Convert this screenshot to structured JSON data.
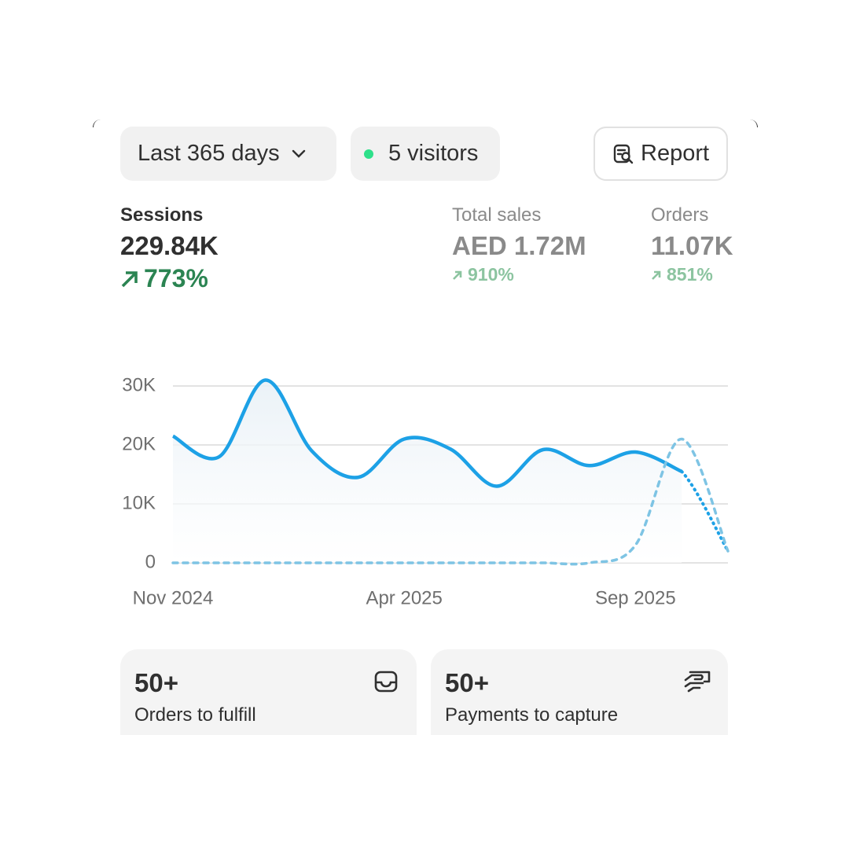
{
  "toolbar": {
    "range": "Last 365 days",
    "visitors": "5 visitors",
    "report": "Report"
  },
  "metrics": [
    {
      "label": "Sessions",
      "value": "229.84K",
      "change": "773%"
    },
    {
      "label": "Total sales",
      "value": "AED 1.72M",
      "change": "910%"
    },
    {
      "label": "Orders",
      "value": "11.07K",
      "change": "851%"
    }
  ],
  "chart_data": {
    "type": "line",
    "categories": [
      "Nov 2024",
      null,
      null,
      null,
      null,
      "Apr 2025",
      null,
      null,
      null,
      null,
      "Sep 2025",
      null,
      null
    ],
    "series": [
      {
        "color": "#1da1e6",
        "style": "solid",
        "last_segment_dotted": true,
        "values": [
          21500,
          18000,
          31000,
          19000,
          14500,
          21000,
          19300,
          13000,
          19200,
          16500,
          18800,
          15500,
          2000
        ]
      },
      {
        "color": "#7ec4e4",
        "style": "dashed",
        "values": [
          0,
          0,
          0,
          0,
          0,
          0,
          0,
          0,
          0,
          0,
          3000,
          21000,
          2000
        ]
      }
    ],
    "ylim": [
      0,
      30000
    ],
    "yticks": [
      0,
      {
        "value": 10000,
        "label": "10K"
      },
      {
        "value": 20000,
        "label": "20K"
      },
      {
        "value": 30000,
        "label": "30K"
      }
    ],
    "grid": true
  },
  "cards": [
    {
      "count": "50+",
      "label": "Orders to fulfill"
    },
    {
      "count": "50+",
      "label": "Payments to capture"
    }
  ]
}
